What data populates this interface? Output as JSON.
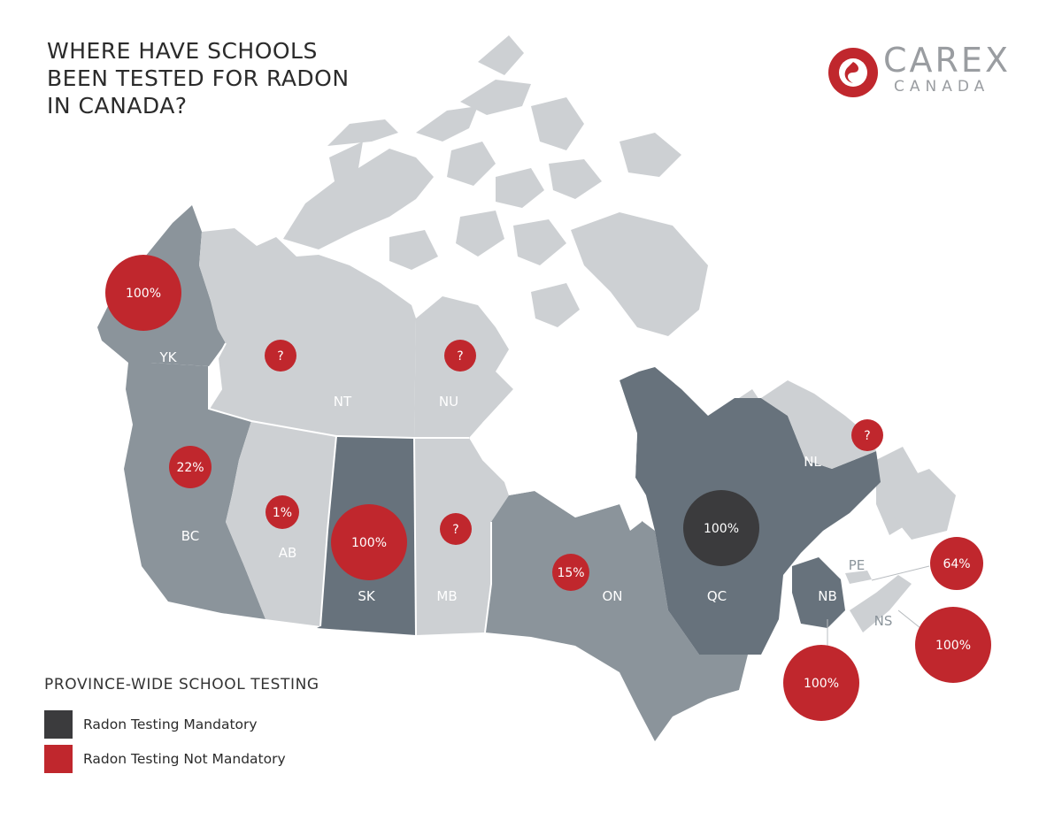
{
  "title": {
    "lines": [
      "WHERE HAVE SCHOOLS",
      "BEEN TESTED FOR RADON",
      "IN CANADA?"
    ]
  },
  "logo": {
    "name": "CAREX",
    "subtitle": "CANADA",
    "color": "#c0272d"
  },
  "legend": {
    "title": "PROVINCE-WIDE SCHOOL TESTING",
    "items": [
      {
        "label": "Radon Testing Mandatory",
        "color": "#3b3b3d"
      },
      {
        "label": "Radon Testing Not Mandatory",
        "color": "#c0272d"
      }
    ]
  },
  "colors": {
    "mandatory": "#3b3b3d",
    "not_mandatory": "#c0272d",
    "region_dark": "#67727c",
    "region_mid": "#8b949b",
    "region_light": "#cdd0d3",
    "arctic": "#cdd0d3",
    "water": "#ffffff"
  },
  "regions": [
    {
      "abbr": "YK",
      "value": "100%",
      "mandatory": false
    },
    {
      "abbr": "NT",
      "value": "?",
      "mandatory": false
    },
    {
      "abbr": "NU",
      "value": "?",
      "mandatory": false
    },
    {
      "abbr": "BC",
      "value": "22%",
      "mandatory": false
    },
    {
      "abbr": "AB",
      "value": "1%",
      "mandatory": false
    },
    {
      "abbr": "SK",
      "value": "100%",
      "mandatory": false
    },
    {
      "abbr": "MB",
      "value": "?",
      "mandatory": false
    },
    {
      "abbr": "ON",
      "value": "15%",
      "mandatory": false
    },
    {
      "abbr": "QC",
      "value": "100%",
      "mandatory": true
    },
    {
      "abbr": "NL",
      "value": "?",
      "mandatory": false
    },
    {
      "abbr": "NB",
      "value": "100%",
      "mandatory": false
    },
    {
      "abbr": "PE",
      "value": "64%",
      "mandatory": false
    },
    {
      "abbr": "NS",
      "value": "100%",
      "mandatory": false
    }
  ]
}
